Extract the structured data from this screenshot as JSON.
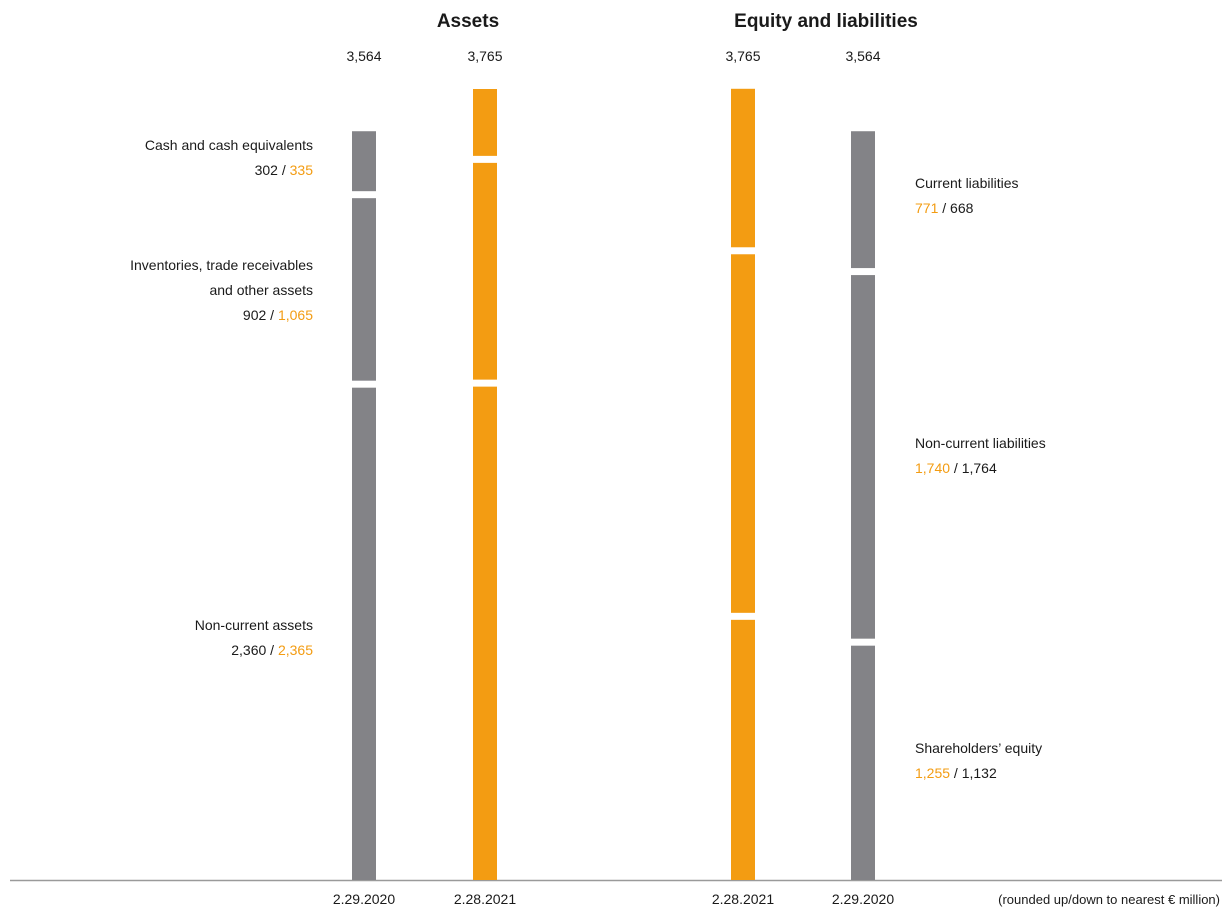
{
  "chart_data": {
    "type": "bar",
    "unit_note": "(rounded up/down to nearest € million)",
    "colors": {
      "prior": "#838387",
      "current": "#F39C12",
      "text": "#1a1a1a",
      "axis": "#9a9a9a"
    },
    "sections": [
      {
        "title": "Assets",
        "stack_order": "top-down",
        "columns": [
          {
            "period": "2.29.2020",
            "total": "3,564",
            "color_role": "prior",
            "values": [
              302,
              902,
              2360
            ]
          },
          {
            "period": "2.28.2021",
            "total": "3,765",
            "color_role": "current",
            "values": [
              335,
              1065,
              2365
            ]
          }
        ],
        "segments": [
          {
            "name_lines": [
              "Cash and cash equivalents"
            ],
            "first": "302",
            "second": "335",
            "first_role": "prior",
            "second_role": "current"
          },
          {
            "name_lines": [
              "Inventories, trade receivables",
              "and other assets"
            ],
            "first": "902",
            "second": "1,065",
            "first_role": "prior",
            "second_role": "current"
          },
          {
            "name_lines": [
              "Non-current assets"
            ],
            "first": "2,360",
            "second": "2,365",
            "first_role": "prior",
            "second_role": "current"
          }
        ]
      },
      {
        "title": "Equity and liabilities",
        "stack_order": "top-down",
        "columns": [
          {
            "period": "2.28.2021",
            "total": "3,765",
            "color_role": "current",
            "values": [
              771,
              1740,
              1255
            ]
          },
          {
            "period": "2.29.2020",
            "total": "3,564",
            "color_role": "prior",
            "values": [
              668,
              1764,
              1132
            ]
          }
        ],
        "segments": [
          {
            "name_lines": [
              "Current liabilities"
            ],
            "first": "771",
            "second": "668",
            "first_role": "current",
            "second_role": "prior"
          },
          {
            "name_lines": [
              "Non-current liabilities"
            ],
            "first": "1,740",
            "second": "1,764",
            "first_role": "current",
            "second_role": "prior"
          },
          {
            "name_lines": [
              "Shareholders’ equity"
            ],
            "first": "1,255",
            "second": "1,132",
            "first_role": "current",
            "second_role": "prior"
          }
        ]
      }
    ]
  }
}
